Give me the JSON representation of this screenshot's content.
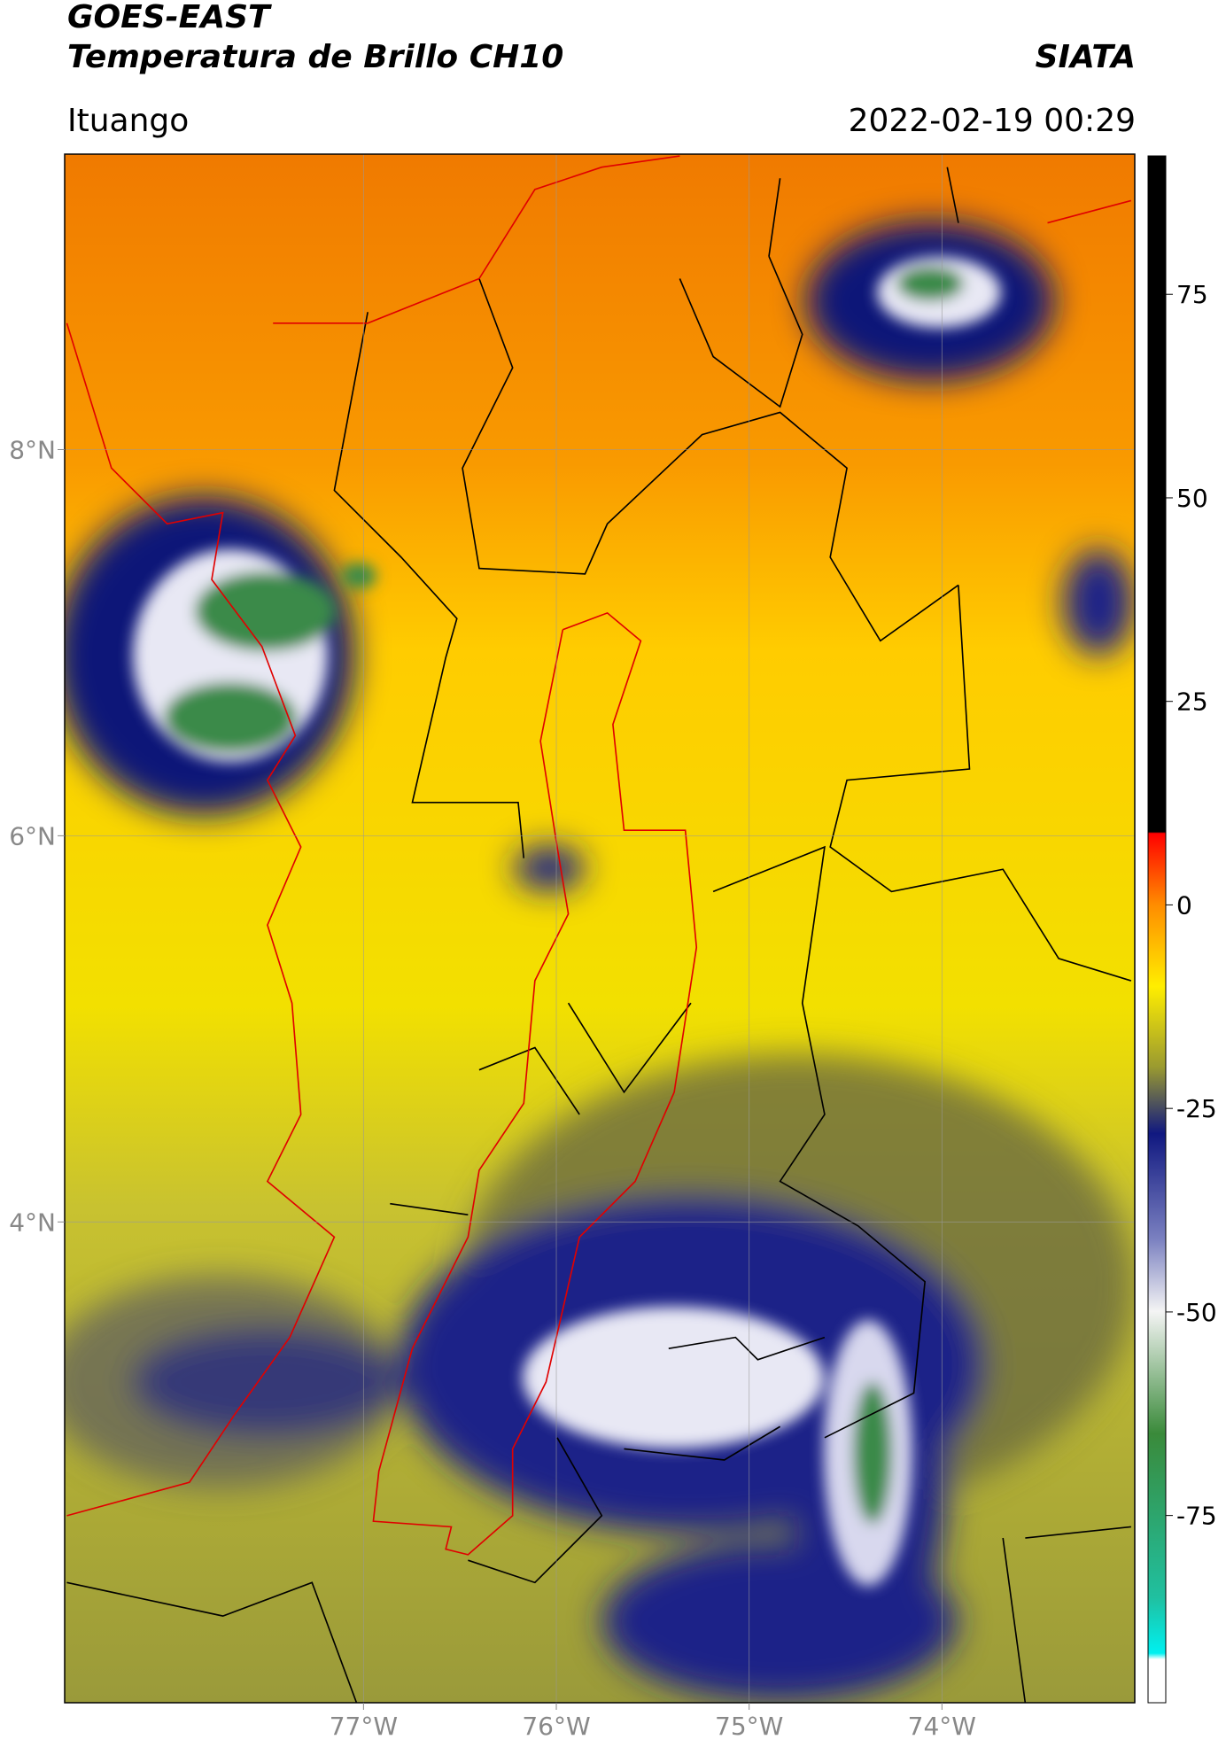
{
  "header": {
    "title": "GOES-EAST",
    "subtitle": "Temperatura de Brillo CH10",
    "source": "SIATA",
    "location": "Ituango",
    "datetime": "2022-02-19 00:29"
  },
  "map": {
    "xlim": [
      -78.55,
      -73.0
    ],
    "ylim": [
      1.51,
      9.53
    ],
    "xticks": [
      {
        "value": -77,
        "label": "77°W"
      },
      {
        "value": -76,
        "label": "76°W"
      },
      {
        "value": -75,
        "label": "75°W"
      },
      {
        "value": -74,
        "label": "74°W"
      }
    ],
    "yticks": [
      {
        "value": 8,
        "label": "8°N"
      },
      {
        "value": 6,
        "label": "6°N"
      },
      {
        "value": 4,
        "label": "4°N"
      }
    ],
    "grid": true
  },
  "colorbar": {
    "clim": [
      -98,
      92
    ],
    "ticks": [
      75,
      50,
      25,
      0,
      -25,
      -50,
      -75
    ]
  }
}
